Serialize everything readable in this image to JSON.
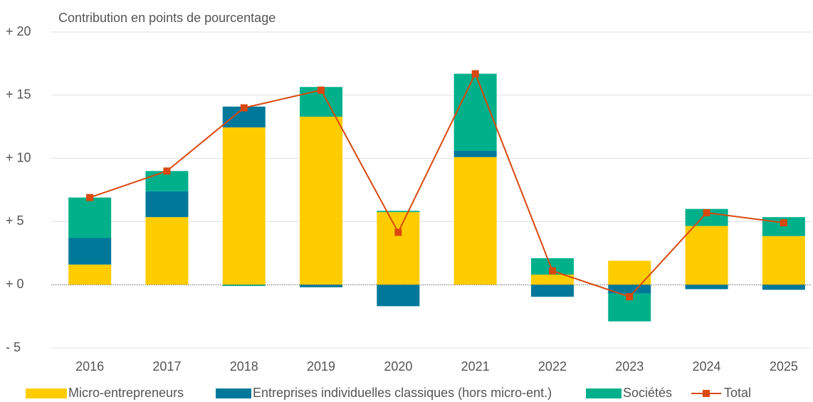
{
  "chart_data": {
    "type": "stacked-bar-line",
    "y_axis_label": "Contribution en points de pourcentage",
    "categories": [
      "2016",
      "2017",
      "2018",
      "2019",
      "2020",
      "2021",
      "2022",
      "2023",
      "2024",
      "2025"
    ],
    "series": [
      {
        "name": "Micro-entrepreneurs",
        "color": "#ffcc00",
        "kind": "bar",
        "values": [
          1.6,
          5.35,
          12.45,
          13.3,
          5.75,
          10.1,
          0.8,
          1.9,
          4.65,
          3.85
        ]
      },
      {
        "name": "Entreprises individuelles classiques (hors micro-ent.)",
        "color": "#00789a",
        "kind": "bar",
        "values": [
          2.1,
          2.05,
          1.65,
          -0.2,
          -1.7,
          0.5,
          -0.95,
          -0.7,
          -0.35,
          -0.4
        ]
      },
      {
        "name": "Sociétés",
        "color": "#00b08b",
        "kind": "bar",
        "values": [
          3.2,
          1.6,
          -0.1,
          2.35,
          0.1,
          6.1,
          1.3,
          -2.2,
          1.35,
          1.5
        ]
      },
      {
        "name": "Total",
        "color": "#d9480f",
        "kind": "line",
        "values": [
          6.9,
          9.0,
          14.0,
          15.4,
          4.15,
          16.7,
          1.1,
          -0.95,
          5.7,
          4.9
        ]
      }
    ],
    "ylim": [
      -5,
      20
    ],
    "yticks": [
      {
        "value": -5,
        "label": "- 5"
      },
      {
        "value": 0,
        "label": "+ 0"
      },
      {
        "value": 5,
        "label": "+ 5"
      },
      {
        "value": 10,
        "label": "+ 10"
      },
      {
        "value": 15,
        "label": "+ 15"
      },
      {
        "value": 20,
        "label": "+ 20"
      }
    ],
    "grid": true
  }
}
